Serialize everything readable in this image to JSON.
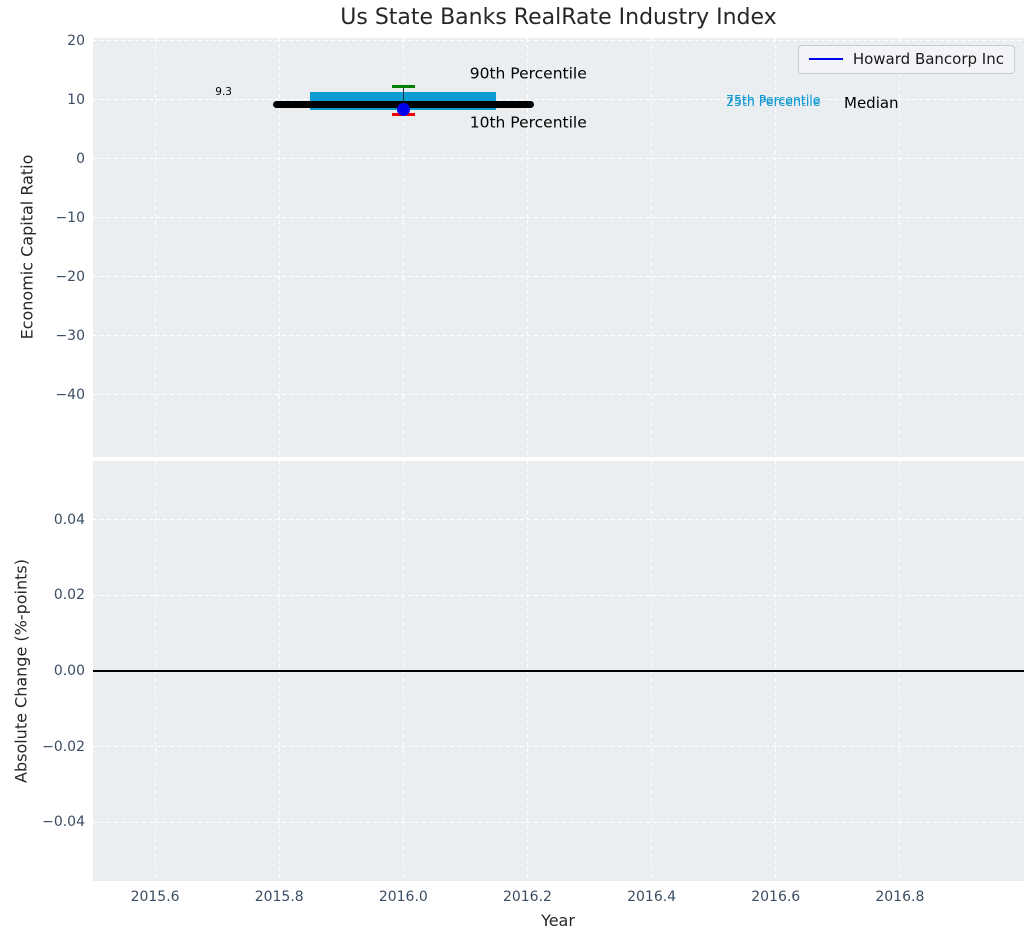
{
  "figure": {
    "title": "Us State Banks RealRate Industry Index",
    "background": "#ffffff",
    "axes_background": "#ebeef0",
    "grid_color": "#ffffff",
    "tick_color": "#3b4d63",
    "label_color": "#262626"
  },
  "chart_data": [
    {
      "type": "line",
      "panel": "top",
      "title": "Us State Banks RealRate Industry Index",
      "ylabel": "Economic Capital Ratio",
      "xlim": [
        2015.5,
        2017.0
      ],
      "ylim": [
        -50.6,
        20.5
      ],
      "grid": true,
      "legend_position": "upper right",
      "xticks": [
        2015.6,
        2015.8,
        2016.0,
        2016.2,
        2016.4,
        2016.6,
        2016.8
      ],
      "xtick_labels": [],
      "yticks": [
        20,
        10,
        0,
        -10,
        -20,
        -30,
        -40
      ],
      "ytick_labels": [
        "20",
        "10",
        "0",
        "−10",
        "−20",
        "−30",
        "−40"
      ],
      "legend": {
        "entries": [
          {
            "label": "Howard Bancorp Inc",
            "color": "#0000ee"
          }
        ]
      },
      "stats": {
        "median": 9.3,
        "p25": 8.2,
        "p75": 11.4,
        "p10": 7.5,
        "p90": 12.3,
        "company_value": 8.4,
        "company_year": 2016.0
      },
      "series": [
        {
          "kind": "hseg",
          "name": "median-line",
          "x0": 2015.79,
          "x1": 2016.21,
          "y": 9.3,
          "color": "#000000",
          "lw": 7
        },
        {
          "kind": "bar",
          "name": "iqr-bar",
          "x": 2016.0,
          "halfwidth": 0.15,
          "y0": 8.2,
          "y1": 11.4,
          "color": "#0d9dd3"
        },
        {
          "kind": "vseg",
          "name": "errorbar-stem",
          "x": 2016.0,
          "y0": 8.4,
          "y1": 12.3,
          "color": "#22313f",
          "lw": 1.5
        },
        {
          "kind": "cap",
          "name": "p90-cap",
          "x": 2016.0,
          "halfwidth": 0.018,
          "y": 12.3,
          "color": "#008000",
          "lw": 3.5
        },
        {
          "kind": "cap",
          "name": "p10-cap",
          "x": 2016.0,
          "halfwidth": 0.018,
          "y": 7.5,
          "color": "#f20000",
          "lw": 3.5
        },
        {
          "kind": "point",
          "name": "howard-bancorp-point",
          "x": 2016.0,
          "y": 8.4,
          "r": 6.5,
          "color": "#0000ee"
        }
      ],
      "annotations": [
        {
          "text": "9.3",
          "x": 2015.697,
          "y": 11.2,
          "color": "#000000",
          "size": 10.5,
          "name": "median-value-label"
        },
        {
          "text": "90th Percentile",
          "x": 2016.107,
          "y": 14.4,
          "color": "#000000",
          "size": 15.5,
          "name": "p90-label"
        },
        {
          "text": "10th Percentile",
          "x": 2016.107,
          "y": 6.1,
          "color": "#000000",
          "size": 15.5,
          "name": "p10-label"
        },
        {
          "text": "75th Percentile",
          "x": 2016.52,
          "y": 10.0,
          "color": "#149bd2",
          "size": 12.5,
          "name": "p75-label"
        },
        {
          "text": "25th Percentile",
          "x": 2016.52,
          "y": 9.6,
          "color": "#149bd2",
          "size": 12.5,
          "name": "p25-label"
        },
        {
          "text": "Median",
          "x": 2016.71,
          "y": 9.5,
          "color": "#000000",
          "size": 15,
          "name": "median-label"
        }
      ]
    },
    {
      "type": "line",
      "panel": "bottom",
      "xlabel": "Year",
      "ylabel": "Absolute Change (%-points)",
      "xlim": [
        2015.5,
        2017.0
      ],
      "ylim": [
        -0.0555,
        0.0555
      ],
      "grid": true,
      "xticks": [
        2015.6,
        2015.8,
        2016.0,
        2016.2,
        2016.4,
        2016.6,
        2016.8
      ],
      "xtick_labels": [
        "2015.6",
        "2015.8",
        "2016.0",
        "2016.2",
        "2016.4",
        "2016.6",
        "2016.8"
      ],
      "yticks": [
        0.04,
        0.02,
        0,
        -0.02,
        -0.04
      ],
      "ytick_labels": [
        "0.04",
        "0.02",
        "0.00",
        "−0.02",
        "−0.04"
      ],
      "series": [
        {
          "kind": "hline",
          "name": "zero-line",
          "y": 0,
          "color": "#000000",
          "lw": 1.8
        }
      ],
      "annotations": []
    }
  ]
}
